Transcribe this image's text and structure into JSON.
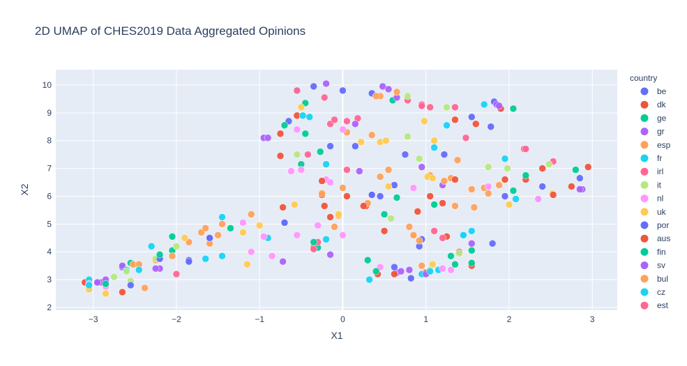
{
  "chart_data": {
    "type": "scatter",
    "title": "2D UMAP of CHES2019 Data Aggregated Opinions",
    "xlabel": "X1",
    "ylabel": "X2",
    "xlim": [
      -3.45,
      3.3
    ],
    "ylim": [
      1.9,
      10.55
    ],
    "xticks": [
      -3,
      -2,
      -1,
      0,
      1,
      2,
      3
    ],
    "yticks": [
      2,
      3,
      4,
      5,
      6,
      7,
      8,
      9,
      10
    ],
    "grid": true,
    "plot_background": "#e5ecf6",
    "legend_title": "country",
    "legend_position": "right",
    "series": [
      {
        "name": "be",
        "color": "#636efa",
        "points": [
          [
            -2.65,
            3.45
          ],
          [
            -2.2,
            3.8
          ],
          [
            -1.85,
            3.7
          ],
          [
            -1.6,
            4.5
          ],
          [
            -0.7,
            5.05
          ],
          [
            -0.65,
            8.7
          ],
          [
            -0.35,
            9.95
          ],
          [
            -0.15,
            7.8
          ],
          [
            0.0,
            9.8
          ],
          [
            0.15,
            7.8
          ],
          [
            0.35,
            6.05
          ],
          [
            0.35,
            9.7
          ],
          [
            0.45,
            6.0
          ],
          [
            0.62,
            6.4
          ],
          [
            0.75,
            7.5
          ],
          [
            0.82,
            3.05
          ],
          [
            0.95,
            4.45
          ],
          [
            1.22,
            7.5
          ],
          [
            1.55,
            8.85
          ],
          [
            1.78,
            8.5
          ],
          [
            1.82,
            9.4
          ],
          [
            1.95,
            6.0
          ],
          [
            2.4,
            6.35
          ],
          [
            2.85,
            6.65
          ]
        ]
      },
      {
        "name": "dk",
        "color": "#ef553b",
        "points": [
          [
            -3.1,
            2.9
          ],
          [
            -2.65,
            2.55
          ],
          [
            -0.75,
            8.25
          ],
          [
            -0.75,
            7.45
          ],
          [
            -0.72,
            5.6
          ],
          [
            -0.35,
            4.15
          ],
          [
            -0.25,
            6.05
          ],
          [
            -0.22,
            5.65
          ],
          [
            -0.15,
            5.25
          ],
          [
            0.05,
            6.0
          ],
          [
            0.28,
            5.65
          ],
          [
            0.42,
            3.2
          ],
          [
            0.5,
            4.75
          ],
          [
            0.9,
            5.45
          ],
          [
            1.0,
            3.25
          ],
          [
            1.2,
            5.75
          ],
          [
            1.25,
            4.55
          ],
          [
            1.35,
            8.75
          ],
          [
            1.55,
            3.5
          ],
          [
            1.6,
            8.6
          ],
          [
            1.9,
            9.15
          ],
          [
            2.2,
            6.6
          ],
          [
            2.4,
            7.0
          ],
          [
            2.75,
            6.35
          ],
          [
            2.95,
            7.05
          ]
        ]
      },
      {
        "name": "ge",
        "color": "#00cc96",
        "points": [
          [
            -2.55,
            3.6
          ],
          [
            -2.05,
            4.55
          ],
          [
            -2.05,
            4.05
          ],
          [
            -1.35,
            4.85
          ],
          [
            -0.7,
            8.55
          ],
          [
            -0.45,
            9.35
          ],
          [
            -0.45,
            8.25
          ],
          [
            -0.5,
            7.15
          ],
          [
            -0.3,
            4.15
          ],
          [
            -0.27,
            7.6
          ],
          [
            0.3,
            3.7
          ],
          [
            0.5,
            5.35
          ],
          [
            0.6,
            9.45
          ],
          [
            0.65,
            5.95
          ],
          [
            1.1,
            5.7
          ],
          [
            1.35,
            3.55
          ],
          [
            1.55,
            4.05
          ],
          [
            1.55,
            3.6
          ],
          [
            2.05,
            6.2
          ],
          [
            2.05,
            9.15
          ],
          [
            2.2,
            6.75
          ],
          [
            2.8,
            6.95
          ]
        ]
      },
      {
        "name": "gr",
        "color": "#ab63fa",
        "points": [
          [
            -2.9,
            2.9
          ],
          [
            -2.85,
            3.0
          ],
          [
            -2.65,
            3.5
          ],
          [
            -2.2,
            3.4
          ],
          [
            -0.95,
            8.1
          ],
          [
            -0.72,
            3.65
          ],
          [
            -0.15,
            3.9
          ],
          [
            -0.2,
            10.05
          ],
          [
            0.2,
            6.9
          ],
          [
            0.48,
            9.95
          ],
          [
            0.55,
            9.85
          ],
          [
            0.65,
            9.55
          ],
          [
            0.65,
            3.25
          ],
          [
            0.8,
            3.35
          ],
          [
            0.95,
            7.05
          ],
          [
            1.2,
            6.4
          ],
          [
            1.55,
            4.3
          ],
          [
            1.85,
            9.3
          ],
          [
            2.88,
            6.25
          ]
        ]
      },
      {
        "name": "esp",
        "color": "#ffa15a",
        "points": [
          [
            -2.52,
            3.55
          ],
          [
            -2.38,
            2.7
          ],
          [
            -2.25,
            3.7
          ],
          [
            -2.05,
            3.85
          ],
          [
            -1.85,
            4.35
          ],
          [
            -1.7,
            4.7
          ],
          [
            -1.65,
            4.85
          ],
          [
            -1.6,
            4.3
          ],
          [
            -1.45,
            5.0
          ],
          [
            -1.1,
            5.35
          ],
          [
            -0.1,
            4.9
          ],
          [
            -0.05,
            5.3
          ],
          [
            0.0,
            6.3
          ],
          [
            0.05,
            8.3
          ],
          [
            0.3,
            5.75
          ],
          [
            0.35,
            8.2
          ],
          [
            0.45,
            6.7
          ],
          [
            0.45,
            9.6
          ],
          [
            0.55,
            6.95
          ],
          [
            0.65,
            9.75
          ],
          [
            0.8,
            4.9
          ],
          [
            0.85,
            4.6
          ],
          [
            0.95,
            3.5
          ],
          [
            1.05,
            6.75
          ],
          [
            1.3,
            6.65
          ],
          [
            1.35,
            5.65
          ],
          [
            1.38,
            7.3
          ],
          [
            1.58,
            5.6
          ],
          [
            1.7,
            6.3
          ],
          [
            1.75,
            6.1
          ],
          [
            1.88,
            6.4
          ]
        ]
      },
      {
        "name": "fr",
        "color": "#19d3f3",
        "points": [
          [
            -3.05,
            3.0
          ],
          [
            -2.6,
            3.35
          ],
          [
            -2.3,
            4.2
          ],
          [
            -1.65,
            3.75
          ],
          [
            -1.45,
            5.25
          ],
          [
            -1.45,
            3.85
          ],
          [
            -0.9,
            4.5
          ],
          [
            -0.55,
            9.8
          ],
          [
            -0.4,
            8.85
          ],
          [
            -0.2,
            4.45
          ],
          [
            -0.2,
            7.15
          ],
          [
            0.95,
            3.2
          ],
          [
            1.1,
            7.75
          ],
          [
            1.15,
            3.35
          ],
          [
            1.25,
            8.55
          ],
          [
            1.45,
            4.6
          ],
          [
            1.55,
            4.75
          ],
          [
            1.7,
            9.3
          ],
          [
            1.95,
            7.35
          ],
          [
            2.08,
            5.9
          ],
          [
            2.35,
            5.9
          ]
        ]
      },
      {
        "name": "irl",
        "color": "#ff6692",
        "points": [
          [
            -2.0,
            3.2
          ],
          [
            -0.42,
            7.5
          ],
          [
            -0.3,
            4.35
          ],
          [
            -0.22,
            9.55
          ],
          [
            -0.15,
            8.6
          ],
          [
            -0.1,
            8.75
          ],
          [
            0.05,
            6.95
          ],
          [
            0.05,
            8.7
          ],
          [
            0.18,
            8.8
          ],
          [
            0.78,
            9.45
          ],
          [
            0.95,
            9.3
          ],
          [
            1.05,
            9.2
          ],
          [
            1.1,
            4.75
          ],
          [
            1.2,
            4.5
          ],
          [
            1.4,
            4.0
          ],
          [
            1.48,
            8.1
          ],
          [
            2.18,
            7.7
          ],
          [
            2.53,
            7.25
          ]
        ]
      },
      {
        "name": "it",
        "color": "#b6e880",
        "points": [
          [
            -2.75,
            3.1
          ],
          [
            -2.6,
            3.3
          ],
          [
            -2.55,
            2.95
          ],
          [
            -2.25,
            3.75
          ],
          [
            -2.0,
            4.2
          ],
          [
            -0.55,
            7.5
          ],
          [
            0.58,
            5.2
          ],
          [
            0.78,
            9.6
          ],
          [
            0.78,
            8.15
          ],
          [
            0.92,
            7.35
          ],
          [
            1.05,
            3.35
          ],
          [
            1.25,
            9.2
          ],
          [
            1.4,
            3.95
          ],
          [
            1.75,
            7.05
          ],
          [
            1.98,
            7.0
          ],
          [
            2.48,
            7.15
          ]
        ]
      },
      {
        "name": "nl",
        "color": "#ff97ff",
        "points": [
          [
            -3.05,
            2.85
          ],
          [
            -2.85,
            2.75
          ],
          [
            -1.2,
            5.05
          ],
          [
            -1.1,
            4.0
          ],
          [
            -0.95,
            4.55
          ],
          [
            -0.85,
            3.85
          ],
          [
            -0.62,
            6.9
          ],
          [
            -0.55,
            4.6
          ],
          [
            -0.55,
            8.4
          ],
          [
            -0.5,
            6.95
          ],
          [
            -0.3,
            4.95
          ],
          [
            -0.2,
            6.6
          ],
          [
            -0.15,
            6.5
          ],
          [
            0.0,
            8.4
          ],
          [
            0.0,
            4.6
          ],
          [
            0.45,
            3.45
          ],
          [
            0.85,
            6.3
          ],
          [
            1.2,
            3.4
          ],
          [
            1.3,
            3.35
          ],
          [
            1.75,
            6.35
          ],
          [
            2.35,
            5.9
          ]
        ]
      },
      {
        "name": "uk",
        "color": "#fecb52",
        "points": [
          [
            -3.05,
            2.65
          ],
          [
            -2.85,
            2.5
          ],
          [
            -1.9,
            4.5
          ],
          [
            -1.2,
            4.7
          ],
          [
            -1.15,
            3.55
          ],
          [
            -1.0,
            4.95
          ],
          [
            -0.58,
            5.7
          ],
          [
            -0.5,
            9.2
          ],
          [
            -0.05,
            5.35
          ],
          [
            0.22,
            7.95
          ],
          [
            0.45,
            7.95
          ],
          [
            0.52,
            8.0
          ],
          [
            0.55,
            6.35
          ],
          [
            0.98,
            8.7
          ],
          [
            1.02,
            6.7
          ],
          [
            1.08,
            6.65
          ],
          [
            1.08,
            3.55
          ],
          [
            1.1,
            8.0
          ],
          [
            2.0,
            5.7
          ],
          [
            2.52,
            6.1
          ]
        ]
      },
      {
        "name": "por",
        "color": "#636efa",
        "points": [
          [
            -2.95,
            2.9
          ],
          [
            -2.55,
            2.8
          ],
          [
            -2.2,
            3.75
          ],
          [
            -1.85,
            3.65
          ],
          [
            -1.6,
            4.5
          ],
          [
            -0.7,
            5.05
          ],
          [
            0.35,
            6.05
          ],
          [
            0.62,
            3.45
          ],
          [
            0.92,
            4.2
          ],
          [
            1.8,
            4.3
          ]
        ]
      },
      {
        "name": "aus",
        "color": "#ef553b",
        "points": [
          [
            -0.55,
            8.9
          ],
          [
            -0.25,
            6.55
          ],
          [
            0.25,
            5.65
          ],
          [
            0.62,
            3.2
          ],
          [
            1.05,
            6.0
          ],
          [
            1.35,
            6.6
          ],
          [
            1.95,
            6.6
          ],
          [
            2.53,
            6.05
          ]
        ]
      },
      {
        "name": "fin",
        "color": "#00cc96",
        "points": [
          [
            -2.85,
            2.85
          ],
          [
            -2.2,
            3.9
          ],
          [
            -0.35,
            4.35
          ],
          [
            0.4,
            3.3
          ],
          [
            1.3,
            3.85
          ]
        ]
      },
      {
        "name": "sv",
        "color": "#ab63fa",
        "points": [
          [
            -2.95,
            2.9
          ],
          [
            -2.25,
            3.4
          ],
          [
            -0.9,
            8.1
          ],
          [
            0.15,
            8.6
          ],
          [
            0.7,
            3.3
          ],
          [
            1.0,
            3.2
          ],
          [
            1.88,
            9.25
          ],
          [
            2.85,
            6.25
          ]
        ]
      },
      {
        "name": "bul",
        "color": "#ffa15a",
        "points": [
          [
            -2.45,
            3.55
          ],
          [
            -1.5,
            4.6
          ],
          [
            -0.25,
            6.1
          ],
          [
            0.4,
            9.6
          ],
          [
            0.92,
            4.4
          ],
          [
            1.22,
            6.55
          ],
          [
            1.55,
            6.25
          ]
        ]
      },
      {
        "name": "cz",
        "color": "#19d3f3",
        "points": [
          [
            -3.05,
            2.8
          ],
          [
            -2.45,
            3.35
          ],
          [
            -0.48,
            8.9
          ],
          [
            0.32,
            3.0
          ],
          [
            1.05,
            3.3
          ],
          [
            1.45,
            4.6
          ]
        ]
      },
      {
        "name": "est",
        "color": "#ff6692",
        "points": [
          [
            -0.55,
            9.8
          ],
          [
            -0.35,
            4.1
          ],
          [
            0.95,
            9.25
          ],
          [
            1.35,
            9.2
          ],
          [
            2.2,
            7.7
          ]
        ]
      }
    ]
  }
}
